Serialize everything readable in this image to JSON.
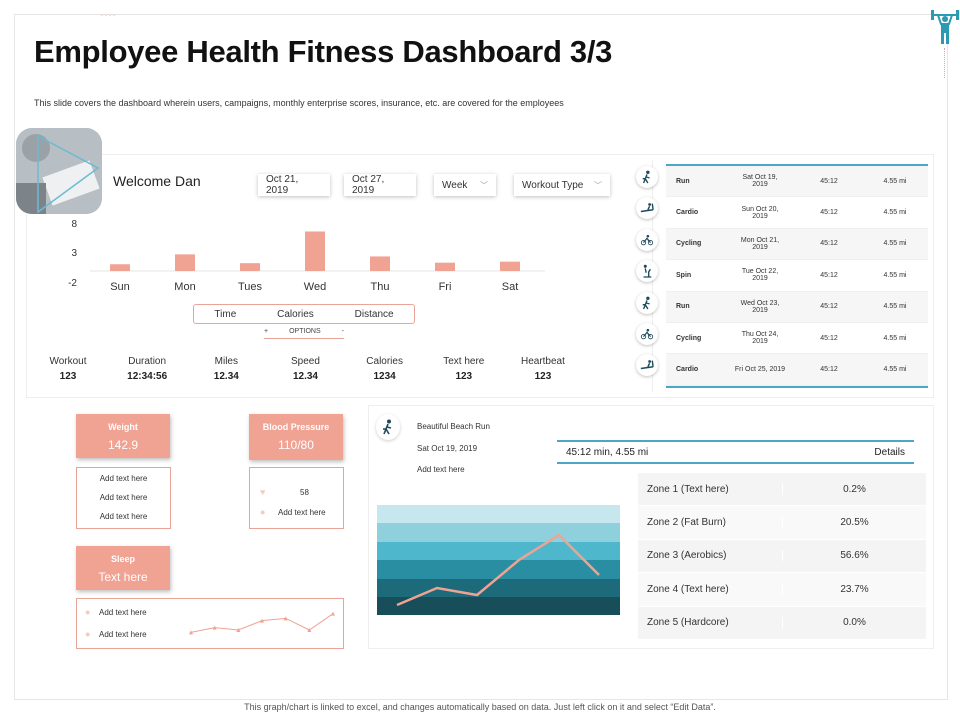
{
  "title": "Employee Health Fitness Dashboard 3/3",
  "subtitle": "This slide covers the dashboard wherein users, campaigns, monthly enterprise scores, insurance, etc. are covered for the employees",
  "welcome": "Welcome Dan",
  "filters": {
    "start_date": "Oct 21, 2019",
    "end_date": "Oct 27, 2019",
    "period": "Week",
    "workout_type": "Workout Type"
  },
  "chart_data": {
    "type": "bar",
    "categories": [
      "Sun",
      "Mon",
      "Tues",
      "Wed",
      "Thu",
      "Fri",
      "Sat"
    ],
    "values": [
      1.3,
      3.2,
      1.5,
      7.6,
      2.8,
      1.6,
      1.8
    ],
    "yticks": [
      "8",
      "3",
      "-2"
    ],
    "ylim": [
      -2,
      8
    ],
    "color": "#f0a293"
  },
  "segments": [
    "Time",
    "Calories",
    "Distance"
  ],
  "options": {
    "plus": "+",
    "label": "OPTIONS",
    "minus": "-"
  },
  "metrics": [
    {
      "label": "Workout",
      "value": "123"
    },
    {
      "label": "Duration",
      "value": "12:34:56"
    },
    {
      "label": "Miles",
      "value": "12.34"
    },
    {
      "label": "Speed",
      "value": "12.34"
    },
    {
      "label": "Calories",
      "value": "1234"
    },
    {
      "label": "Text here",
      "value": "123"
    },
    {
      "label": "Heartbeat",
      "value": "123"
    }
  ],
  "activities": [
    {
      "type": "Run",
      "date": "Sat Oct 19, 2019",
      "time": "45:12",
      "dist": "4.55 mi",
      "icon": "runner-icon"
    },
    {
      "type": "Cardio",
      "date": "Sun Oct 20, 2019",
      "time": "45:12",
      "dist": "4.55 mi",
      "icon": "treadmill-icon"
    },
    {
      "type": "Cycling",
      "date": "Mon Oct 21, 2019",
      "time": "45:12",
      "dist": "4.55 mi",
      "icon": "cyclist-icon"
    },
    {
      "type": "Spin",
      "date": "Tue Oct 22, 2019",
      "time": "45:12",
      "dist": "4.55 mi",
      "icon": "spin-bike-icon"
    },
    {
      "type": "Run",
      "date": "Wed Oct 23, 2019",
      "time": "45:12",
      "dist": "4.55 mi",
      "icon": "runner-icon"
    },
    {
      "type": "Cycling",
      "date": "Thu Oct 24, 2019",
      "time": "45:12",
      "dist": "4.55 mi",
      "icon": "cyclist-icon"
    },
    {
      "type": "Cardio",
      "date": "Fri Oct 25, 2019",
      "time": "45:12",
      "dist": "4.55 mi",
      "icon": "treadmill-icon"
    }
  ],
  "weight": {
    "label": "Weight",
    "value": "142.9",
    "items": [
      "Add text  here",
      "Add text  here",
      "Add text  here"
    ]
  },
  "blood_pressure": {
    "label": "Blood Pressure",
    "value": "110/80",
    "items": [
      "58",
      "Add text  here"
    ]
  },
  "sleep": {
    "label": "Sleep",
    "value": "Text here",
    "items": [
      "Add text  here",
      "Add text  here"
    ],
    "trend": [
      2,
      4,
      3,
      7,
      8,
      3,
      10
    ]
  },
  "run_detail": {
    "name": "Beautiful Beach Run",
    "date": "Sat Oct 19, 2019",
    "note": "Add text here",
    "summary": "45:12 min,   4.55 mi",
    "details": "Details",
    "trend": [
      20,
      38,
      28,
      55,
      82,
      58,
      70,
      52,
      30,
      45
    ]
  },
  "zones": [
    {
      "name": "Zone 1  (Text here)",
      "pct": "0.2%"
    },
    {
      "name": "Zone 2  (Fat Burn)",
      "pct": "20.5%"
    },
    {
      "name": "Zone 3  (Aerobics)",
      "pct": "56.6%"
    },
    {
      "name": "Zone 4  (Text here)",
      "pct": "23.7%"
    },
    {
      "name": "Zone 5  (Hardcore)",
      "pct": "0.0%"
    }
  ],
  "footer": "This graph/chart is linked to excel, and changes automatically based on data. Just left click on it and select “Edit Data”."
}
